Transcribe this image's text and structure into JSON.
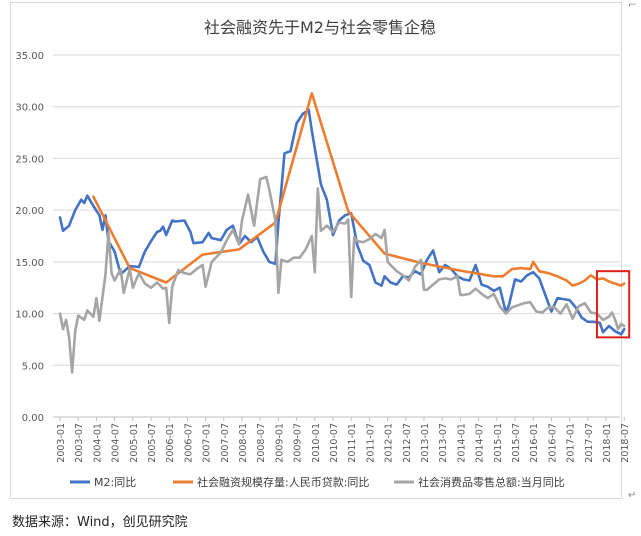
{
  "chart_data": {
    "type": "line",
    "title": "社会融资先于M2与社会零售企稳",
    "xlabel": "",
    "ylabel": "",
    "ylim": [
      0,
      35
    ],
    "yticks": [
      "0.00",
      "5.00",
      "10.00",
      "15.00",
      "20.00",
      "25.00",
      "30.00",
      "35.00"
    ],
    "x_tick_labels": [
      "2003-01",
      "2003-07",
      "2004-01",
      "2004-07",
      "2005-01",
      "2005-07",
      "2006-01",
      "2006-07",
      "2007-01",
      "2007-07",
      "2008-01",
      "2008-07",
      "2009-01",
      "2009-07",
      "2010-01",
      "2010-07",
      "2011-01",
      "2011-07",
      "2012-01",
      "2012-07",
      "2013-01",
      "2013-07",
      "2014-01",
      "2014-07",
      "2015-01",
      "2015-07",
      "2016-01",
      "2016-07",
      "2017-01",
      "2017-07",
      "2018-01",
      "2018-07"
    ],
    "grid": "horizontal",
    "legend_position": "bottom",
    "highlight_box": {
      "from": "2017-12",
      "to": "2018-07",
      "color": "#e0201b"
    },
    "series": [
      {
        "name": "M2:同比",
        "color": "#4472c4",
        "points": [
          [
            "2003-01",
            19.3
          ],
          [
            "2003-02",
            18.0
          ],
          [
            "2003-04",
            18.5
          ],
          [
            "2003-06",
            20.0
          ],
          [
            "2003-08",
            21.0
          ],
          [
            "2003-09",
            20.7
          ],
          [
            "2003-10",
            21.4
          ],
          [
            "2003-12",
            20.4
          ],
          [
            "2004-02",
            19.5
          ],
          [
            "2004-03",
            18.1
          ],
          [
            "2004-04",
            19.5
          ],
          [
            "2004-05",
            17.0
          ],
          [
            "2004-07",
            16.0
          ],
          [
            "2004-09",
            13.8
          ],
          [
            "2004-12",
            14.6
          ],
          [
            "2005-03",
            14.5
          ],
          [
            "2005-05",
            16.0
          ],
          [
            "2005-07",
            17.0
          ],
          [
            "2005-09",
            17.9
          ],
          [
            "2005-10",
            18.0
          ],
          [
            "2005-11",
            18.4
          ],
          [
            "2005-12",
            17.6
          ],
          [
            "2006-02",
            19.0
          ],
          [
            "2006-03",
            18.9
          ],
          [
            "2006-06",
            19.0
          ],
          [
            "2006-08",
            17.9
          ],
          [
            "2006-09",
            16.8
          ],
          [
            "2006-12",
            16.9
          ],
          [
            "2007-02",
            17.8
          ],
          [
            "2007-03",
            17.3
          ],
          [
            "2007-06",
            17.1
          ],
          [
            "2007-08",
            18.1
          ],
          [
            "2007-10",
            18.5
          ],
          [
            "2007-12",
            16.7
          ],
          [
            "2008-02",
            17.5
          ],
          [
            "2008-04",
            16.9
          ],
          [
            "2008-06",
            17.4
          ],
          [
            "2008-08",
            16.0
          ],
          [
            "2008-10",
            15.0
          ],
          [
            "2008-12",
            14.8
          ],
          [
            "2009-01",
            18.8
          ],
          [
            "2009-03",
            25.5
          ],
          [
            "2009-05",
            25.7
          ],
          [
            "2009-07",
            28.4
          ],
          [
            "2009-09",
            29.3
          ],
          [
            "2009-11",
            29.7
          ],
          [
            "2009-12",
            27.7
          ],
          [
            "2010-01",
            26.0
          ],
          [
            "2010-03",
            22.5
          ],
          [
            "2010-05",
            21.0
          ],
          [
            "2010-07",
            17.6
          ],
          [
            "2010-09",
            19.0
          ],
          [
            "2010-11",
            19.5
          ],
          [
            "2011-01",
            19.7
          ],
          [
            "2011-03",
            16.6
          ],
          [
            "2011-05",
            15.1
          ],
          [
            "2011-07",
            14.7
          ],
          [
            "2011-09",
            13.0
          ],
          [
            "2011-11",
            12.7
          ],
          [
            "2011-12",
            13.6
          ],
          [
            "2012-02",
            13.0
          ],
          [
            "2012-04",
            12.8
          ],
          [
            "2012-06",
            13.6
          ],
          [
            "2012-08",
            13.5
          ],
          [
            "2012-10",
            14.1
          ],
          [
            "2012-12",
            13.8
          ],
          [
            "2013-02",
            15.2
          ],
          [
            "2013-04",
            16.1
          ],
          [
            "2013-06",
            14.0
          ],
          [
            "2013-08",
            14.7
          ],
          [
            "2013-10",
            14.3
          ],
          [
            "2013-12",
            13.6
          ],
          [
            "2014-02",
            13.3
          ],
          [
            "2014-04",
            13.2
          ],
          [
            "2014-06",
            14.7
          ],
          [
            "2014-08",
            12.8
          ],
          [
            "2014-10",
            12.6
          ],
          [
            "2014-12",
            12.2
          ],
          [
            "2015-02",
            12.5
          ],
          [
            "2015-04",
            10.1
          ],
          [
            "2015-05",
            10.8
          ],
          [
            "2015-07",
            13.3
          ],
          [
            "2015-09",
            13.1
          ],
          [
            "2015-11",
            13.7
          ],
          [
            "2016-01",
            14.0
          ],
          [
            "2016-03",
            13.4
          ],
          [
            "2016-05",
            11.8
          ],
          [
            "2016-07",
            10.2
          ],
          [
            "2016-09",
            11.5
          ],
          [
            "2016-11",
            11.4
          ],
          [
            "2017-01",
            11.3
          ],
          [
            "2017-03",
            10.6
          ],
          [
            "2017-05",
            9.6
          ],
          [
            "2017-07",
            9.2
          ],
          [
            "2017-09",
            9.2
          ],
          [
            "2017-11",
            9.1
          ],
          [
            "2017-12",
            8.2
          ],
          [
            "2018-02",
            8.8
          ],
          [
            "2018-04",
            8.3
          ],
          [
            "2018-06",
            8.0
          ],
          [
            "2018-07",
            8.5
          ]
        ]
      },
      {
        "name": "社会融资规模存量:人民币贷款:同比",
        "color": "#ed7d31",
        "points": [
          [
            "2003-12",
            21.3
          ],
          [
            "2004-12",
            14.4
          ],
          [
            "2005-12",
            13.0
          ],
          [
            "2006-12",
            15.7
          ],
          [
            "2007-12",
            16.2
          ],
          [
            "2008-12",
            18.8
          ],
          [
            "2009-12",
            31.3
          ],
          [
            "2010-12",
            19.9
          ],
          [
            "2011-12",
            15.8
          ],
          [
            "2012-12",
            14.9
          ],
          [
            "2013-12",
            14.2
          ],
          [
            "2014-12",
            13.6
          ],
          [
            "2015-03",
            13.6
          ],
          [
            "2015-06",
            14.3
          ],
          [
            "2015-09",
            14.4
          ],
          [
            "2015-12",
            14.3
          ],
          [
            "2016-01",
            15.0
          ],
          [
            "2016-03",
            14.1
          ],
          [
            "2016-06",
            13.9
          ],
          [
            "2016-09",
            13.6
          ],
          [
            "2016-12",
            13.2
          ],
          [
            "2017-02",
            12.7
          ],
          [
            "2017-04",
            12.9
          ],
          [
            "2017-06",
            13.2
          ],
          [
            "2017-08",
            13.7
          ],
          [
            "2017-10",
            13.3
          ],
          [
            "2017-12",
            13.4
          ],
          [
            "2018-02",
            13.1
          ],
          [
            "2018-04",
            12.9
          ],
          [
            "2018-06",
            12.7
          ],
          [
            "2018-07",
            12.9
          ]
        ]
      },
      {
        "name": "社会消费品零售总额:当月同比",
        "color": "#a5a5a5",
        "points": [
          [
            "2003-01",
            10.0
          ],
          [
            "2003-02",
            8.5
          ],
          [
            "2003-03",
            9.4
          ],
          [
            "2003-04",
            7.7
          ],
          [
            "2003-05",
            4.3
          ],
          [
            "2003-06",
            8.3
          ],
          [
            "2003-07",
            9.8
          ],
          [
            "2003-09",
            9.4
          ],
          [
            "2003-10",
            10.3
          ],
          [
            "2003-12",
            9.7
          ],
          [
            "2004-01",
            11.5
          ],
          [
            "2004-02",
            9.3
          ],
          [
            "2004-04",
            13.8
          ],
          [
            "2004-05",
            17.8
          ],
          [
            "2004-06",
            13.9
          ],
          [
            "2004-07",
            13.2
          ],
          [
            "2004-09",
            14.3
          ],
          [
            "2004-10",
            12.0
          ],
          [
            "2004-12",
            14.3
          ],
          [
            "2005-01",
            12.5
          ],
          [
            "2005-03",
            13.9
          ],
          [
            "2005-05",
            12.9
          ],
          [
            "2005-07",
            12.5
          ],
          [
            "2005-09",
            13.0
          ],
          [
            "2005-11",
            12.4
          ],
          [
            "2005-12",
            12.5
          ],
          [
            "2006-01",
            9.1
          ],
          [
            "2006-02",
            12.6
          ],
          [
            "2006-04",
            14.2
          ],
          [
            "2006-06",
            13.9
          ],
          [
            "2006-08",
            13.8
          ],
          [
            "2006-10",
            14.3
          ],
          [
            "2006-12",
            14.7
          ],
          [
            "2007-01",
            12.6
          ],
          [
            "2007-03",
            15.0
          ],
          [
            "2007-06",
            15.9
          ],
          [
            "2007-08",
            17.1
          ],
          [
            "2007-10",
            18.1
          ],
          [
            "2007-12",
            16.7
          ],
          [
            "2008-01",
            19.0
          ],
          [
            "2008-03",
            21.5
          ],
          [
            "2008-05",
            18.5
          ],
          [
            "2008-07",
            23.0
          ],
          [
            "2008-09",
            23.2
          ],
          [
            "2008-10",
            22.0
          ],
          [
            "2008-12",
            19.0
          ],
          [
            "2009-01",
            12.0
          ],
          [
            "2009-02",
            15.2
          ],
          [
            "2009-04",
            15.0
          ],
          [
            "2009-06",
            15.4
          ],
          [
            "2009-08",
            15.4
          ],
          [
            "2009-10",
            16.2
          ],
          [
            "2009-12",
            17.5
          ],
          [
            "2010-01",
            14.0
          ],
          [
            "2010-02",
            22.1
          ],
          [
            "2010-03",
            18.0
          ],
          [
            "2010-05",
            18.5
          ],
          [
            "2010-07",
            17.9
          ],
          [
            "2010-09",
            18.8
          ],
          [
            "2010-11",
            18.7
          ],
          [
            "2010-12",
            19.1
          ],
          [
            "2011-01",
            11.6
          ],
          [
            "2011-02",
            17.4
          ],
          [
            "2011-03",
            17.0
          ],
          [
            "2011-05",
            16.9
          ],
          [
            "2011-07",
            17.2
          ],
          [
            "2011-09",
            17.7
          ],
          [
            "2011-11",
            17.3
          ],
          [
            "2011-12",
            18.1
          ],
          [
            "2012-01",
            15.0
          ],
          [
            "2012-02",
            14.7
          ],
          [
            "2012-04",
            14.1
          ],
          [
            "2012-06",
            13.7
          ],
          [
            "2012-08",
            13.2
          ],
          [
            "2012-10",
            14.5
          ],
          [
            "2012-12",
            15.2
          ],
          [
            "2013-01",
            12.3
          ],
          [
            "2013-02",
            12.3
          ],
          [
            "2013-04",
            12.8
          ],
          [
            "2013-06",
            13.3
          ],
          [
            "2013-08",
            13.4
          ],
          [
            "2013-10",
            13.3
          ],
          [
            "2013-12",
            13.6
          ],
          [
            "2014-01",
            11.8
          ],
          [
            "2014-02",
            11.8
          ],
          [
            "2014-04",
            11.9
          ],
          [
            "2014-06",
            12.4
          ],
          [
            "2014-08",
            11.9
          ],
          [
            "2014-10",
            11.5
          ],
          [
            "2014-12",
            11.9
          ],
          [
            "2015-02",
            10.7
          ],
          [
            "2015-04",
            10.0
          ],
          [
            "2015-06",
            10.6
          ],
          [
            "2015-08",
            10.8
          ],
          [
            "2015-10",
            11.0
          ],
          [
            "2015-12",
            11.1
          ],
          [
            "2016-02",
            10.2
          ],
          [
            "2016-04",
            10.1
          ],
          [
            "2016-06",
            10.6
          ],
          [
            "2016-08",
            10.6
          ],
          [
            "2016-10",
            10.0
          ],
          [
            "2016-12",
            10.9
          ],
          [
            "2017-02",
            9.5
          ],
          [
            "2017-04",
            10.7
          ],
          [
            "2017-06",
            11.0
          ],
          [
            "2017-08",
            10.1
          ],
          [
            "2017-10",
            10.0
          ],
          [
            "2017-12",
            9.4
          ],
          [
            "2018-02",
            9.7
          ],
          [
            "2018-03",
            10.1
          ],
          [
            "2018-04",
            9.4
          ],
          [
            "2018-05",
            8.5
          ],
          [
            "2018-06",
            9.0
          ],
          [
            "2018-07",
            8.8
          ]
        ]
      }
    ]
  },
  "footer": {
    "source_note": "数据来源：Wind，创见研究院"
  }
}
